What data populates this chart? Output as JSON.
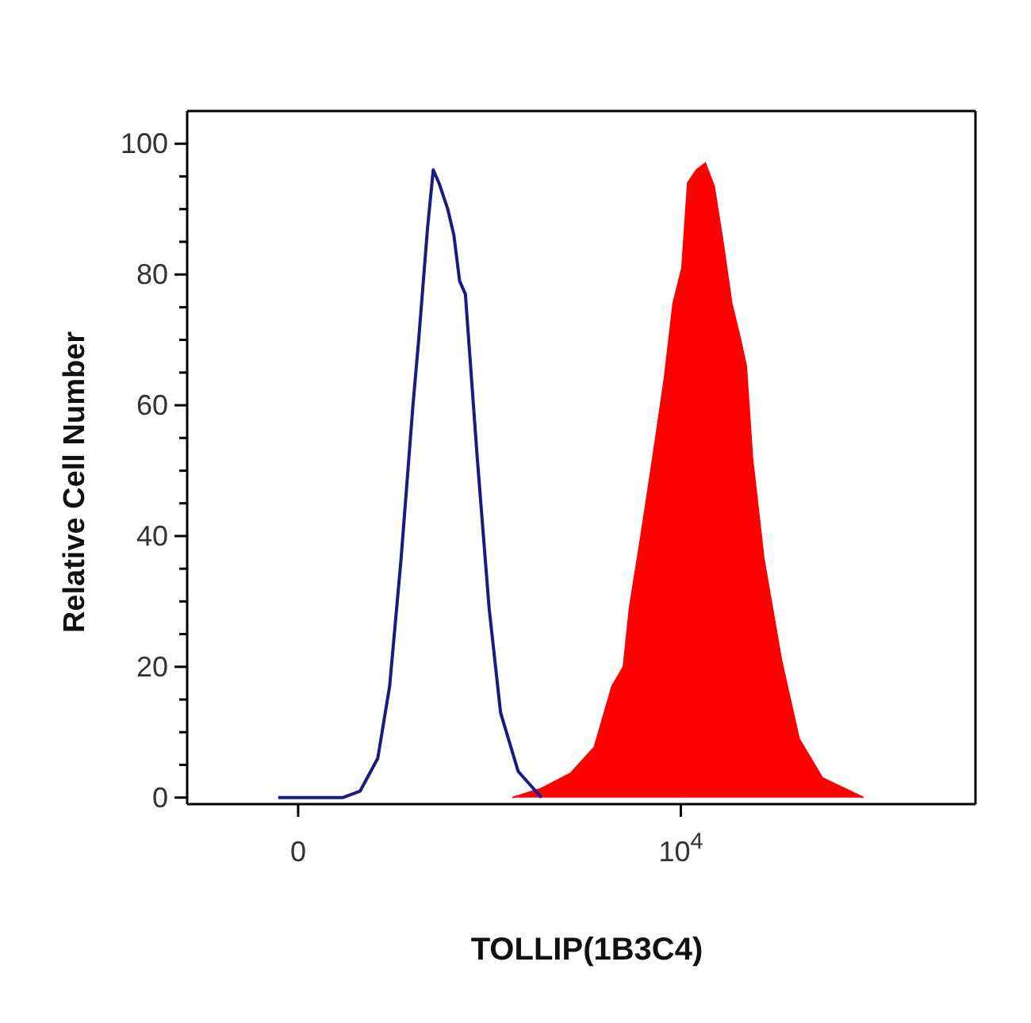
{
  "chart_data": {
    "type": "area",
    "xlabel": "TOLLIP(1B3C4)",
    "ylabel": "Relative Cell Number",
    "xlim": [
      -2900,
      17700
    ],
    "xticks": [
      {
        "value": 0,
        "label": "0"
      },
      {
        "value": 10000,
        "label": "10$^{4}$"
      }
    ],
    "ylim": [
      -1,
      105
    ],
    "yticks": [
      0,
      {
        "value": 5,
        "label": null
      },
      {
        "value": 10,
        "label": null
      },
      {
        "value": 15,
        "label": null
      },
      20,
      {
        "value": 25,
        "label": null
      },
      {
        "value": 30,
        "label": null
      },
      {
        "value": 35,
        "label": null
      },
      40,
      {
        "value": 45,
        "label": null
      },
      {
        "value": 50,
        "label": null
      },
      {
        "value": 55,
        "label": null
      },
      60,
      {
        "value": 65,
        "label": null
      },
      {
        "value": 70,
        "label": null
      },
      {
        "value": 75,
        "label": null
      },
      80,
      {
        "value": 85,
        "label": null
      },
      {
        "value": 90,
        "label": null
      },
      {
        "value": 95,
        "label": null
      },
      100
    ],
    "series": [
      {
        "color": "#ff0000",
        "x": [
          5600,
          6360,
          7120,
          7740,
          8200,
          8500,
          8660,
          8960,
          9270,
          9570,
          9800,
          10030,
          10180,
          10410,
          10640,
          10870,
          11100,
          11330,
          11560,
          11710,
          11870,
          12170,
          12630,
          13090,
          13700,
          14770
        ],
        "values": [
          0,
          1.4,
          3.7,
          7.7,
          17,
          20,
          29,
          40,
          52,
          64,
          75.6,
          81,
          94,
          96,
          97,
          93.5,
          85,
          75.6,
          70,
          66,
          52,
          36.5,
          21,
          9,
          3,
          0
        ]
      },
      {
        "type": "line",
        "color": "#1a1a80",
        "x": [
          -520,
          1160,
          1620,
          2080,
          2390,
          2690,
          3000,
          3150,
          3380,
          3530,
          3680,
          3910,
          4070,
          4220,
          4370,
          4680,
          4990,
          5290,
          5750,
          6360
        ],
        "values": [
          0,
          0,
          1,
          6,
          17,
          36.5,
          60,
          70,
          87,
          96,
          94,
          90,
          86,
          79,
          77,
          52,
          29,
          13,
          4,
          0
        ]
      }
    ]
  }
}
